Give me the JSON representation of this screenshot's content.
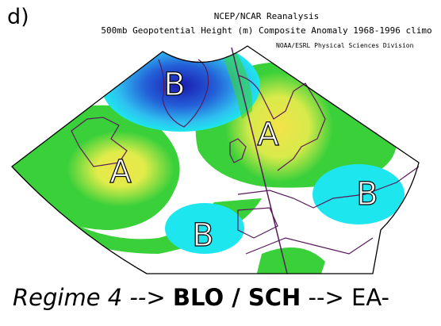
{
  "panel_label": "d)",
  "title_line1": "NCEP/NCAR Reanalysis",
  "title_line2": "500mb Geopotential Height (m) Composite Anomaly 1968-1996 climo",
  "credit": "NOAA/ESRL Physical Sciences Division",
  "map_labels": [
    {
      "id": "b-greenland",
      "text": "B"
    },
    {
      "id": "a-atlantic",
      "text": "A"
    },
    {
      "id": "a-scandinavia",
      "text": "A"
    },
    {
      "id": "b-iberia",
      "text": "B"
    },
    {
      "id": "b-east",
      "text": "B"
    }
  ],
  "caption": {
    "prefix": "Regime 4 -->",
    "bold": "BLO / SCH",
    "suffix": "--> EA-"
  },
  "colors": {
    "strong_negative": "#1a1ab0",
    "negative": "#2f6fe0",
    "weak_negative": "#1ee6ee",
    "neutral": "#ffffff",
    "weak_positive": "#3ad03a",
    "positive": "#c8e84a",
    "strong_positive": "#f2e34a",
    "coastline": "#5a1a5a"
  }
}
